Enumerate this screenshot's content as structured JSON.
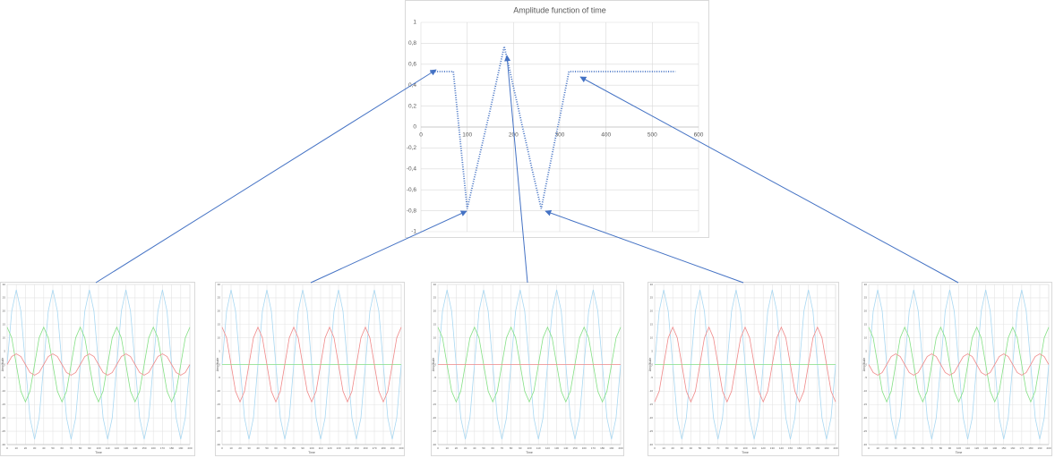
{
  "chart_data": [
    {
      "type": "line",
      "title": "Amplitude function of time",
      "line_style": "dotted",
      "color": "#4472c4",
      "xaxis_position": "zero",
      "grid": true,
      "x": [
        20,
        30,
        40,
        50,
        60,
        70,
        80,
        90,
        100,
        110,
        120,
        130,
        140,
        150,
        160,
        170,
        180,
        190,
        200,
        210,
        220,
        230,
        240,
        250,
        260,
        270,
        280,
        290,
        300,
        310,
        320,
        330,
        340,
        350,
        360,
        370,
        380,
        390,
        400,
        410,
        420,
        430,
        440,
        450,
        460,
        470,
        480,
        490,
        500,
        510,
        520,
        530,
        540,
        550
      ],
      "values": [
        0.53,
        0.53,
        0.53,
        0.53,
        0.53,
        0.53,
        0.09,
        -0.35,
        -0.78,
        -0.59,
        -0.4,
        -0.21,
        -0.02,
        0.17,
        0.37,
        0.57,
        0.77,
        0.58,
        0.38,
        0.19,
        -0.01,
        -0.2,
        -0.4,
        -0.59,
        -0.78,
        -0.56,
        -0.34,
        -0.12,
        0.09,
        0.31,
        0.53,
        0.53,
        0.53,
        0.53,
        0.53,
        0.53,
        0.53,
        0.53,
        0.53,
        0.53,
        0.53,
        0.53,
        0.53,
        0.53,
        0.53,
        0.53,
        0.53,
        0.53,
        0.53,
        0.53,
        0.53,
        0.53,
        0.53,
        0.53
      ],
      "xlim": [
        0,
        600
      ],
      "xticks": [
        0,
        100,
        200,
        300,
        400,
        500,
        600
      ],
      "ylim": [
        -1,
        1
      ],
      "yticks": [
        -1,
        {
          "value": -0.8,
          "label": "-0,8"
        },
        {
          "value": -0.6,
          "label": "-0,6"
        },
        {
          "value": -0.4,
          "label": "-0,4"
        },
        {
          "value": -0.2,
          "label": "-0,2"
        },
        0,
        {
          "value": 0.2,
          "label": "0,2"
        },
        {
          "value": 0.4,
          "label": "0,4"
        },
        {
          "value": 0.6,
          "label": "0,6"
        },
        {
          "value": 0.8,
          "label": "0,8"
        },
        1
      ]
    },
    {
      "type": "line",
      "xlabel": "Time",
      "ylabel": "Amplitude",
      "xaxis_position": "bottom",
      "grid": true,
      "x": [
        0,
        5,
        10,
        15,
        20,
        25,
        30,
        35,
        40,
        45,
        50,
        55,
        60,
        65,
        70,
        75,
        80,
        85,
        90,
        95,
        100,
        105,
        110,
        115,
        120,
        125,
        130,
        135,
        140,
        145,
        150,
        155,
        160,
        165,
        170,
        175,
        180,
        185,
        190,
        195,
        200
      ],
      "series": [
        {
          "color": "#a9d8f2",
          "values": [
            0,
            20,
            28,
            20,
            0,
            -20,
            -28,
            -20,
            0,
            20,
            28,
            20,
            0,
            -20,
            -28,
            -20,
            0,
            20,
            28,
            20,
            0,
            -20,
            -28,
            -20,
            0,
            20,
            28,
            20,
            0,
            -20,
            -28,
            -20,
            0,
            20,
            28,
            20,
            0,
            -20,
            -28,
            -20,
            0
          ]
        },
        {
          "color": "#86e086",
          "values": [
            14,
            10,
            0,
            -10,
            -14,
            -10,
            0,
            10,
            14,
            10,
            0,
            -10,
            -14,
            -10,
            0,
            10,
            14,
            10,
            0,
            -10,
            -14,
            -10,
            0,
            10,
            14,
            10,
            0,
            -10,
            -14,
            -10,
            0,
            10,
            14,
            10,
            0,
            -10,
            -14,
            -10,
            0,
            10,
            14
          ]
        },
        {
          "color": "#f08a8a",
          "values": [
            0,
            3,
            4,
            3,
            0,
            -3,
            -4,
            -3,
            0,
            3,
            4,
            3,
            0,
            -3,
            -4,
            -3,
            0,
            3,
            4,
            3,
            0,
            -3,
            -4,
            -3,
            0,
            3,
            4,
            3,
            0,
            -3,
            -4,
            -3,
            0,
            3,
            4,
            3,
            0,
            -3,
            -4,
            -3,
            0
          ]
        }
      ],
      "xlim": [
        0,
        200
      ],
      "xticks": [
        0,
        10,
        20,
        30,
        40,
        50,
        60,
        70,
        80,
        90,
        100,
        110,
        120,
        130,
        140,
        150,
        160,
        170,
        180,
        190,
        200
      ],
      "ylim": [
        -30,
        30
      ],
      "yticks": [
        -30,
        -25,
        -20,
        -15,
        -10,
        -5,
        0,
        5,
        10,
        15,
        20,
        25,
        30
      ]
    },
    {
      "type": "line",
      "xlabel": "Time",
      "ylabel": "Amplitude",
      "xaxis_position": "bottom",
      "grid": true,
      "x": [
        0,
        5,
        10,
        15,
        20,
        25,
        30,
        35,
        40,
        45,
        50,
        55,
        60,
        65,
        70,
        75,
        80,
        85,
        90,
        95,
        100,
        105,
        110,
        115,
        120,
        125,
        130,
        135,
        140,
        145,
        150,
        155,
        160,
        165,
        170,
        175,
        180,
        185,
        190,
        195,
        200
      ],
      "series": [
        {
          "color": "#a9d8f2",
          "values": [
            0,
            20,
            28,
            20,
            0,
            -20,
            -28,
            -20,
            0,
            20,
            28,
            20,
            0,
            -20,
            -28,
            -20,
            0,
            20,
            28,
            20,
            0,
            -20,
            -28,
            -20,
            0,
            20,
            28,
            20,
            0,
            -20,
            -28,
            -20,
            0,
            20,
            28,
            20,
            0,
            -20,
            -28,
            -20,
            0
          ]
        },
        {
          "color": "#86e086",
          "values": [
            0,
            0,
            0,
            0,
            0,
            0,
            0,
            0,
            0,
            0,
            0,
            0,
            0,
            0,
            0,
            0,
            0,
            0,
            0,
            0,
            0,
            0,
            0,
            0,
            0,
            0,
            0,
            0,
            0,
            0,
            0,
            0,
            0,
            0,
            0,
            0,
            0,
            0,
            0,
            0,
            0
          ]
        },
        {
          "color": "#f08a8a",
          "values": [
            14,
            10,
            0,
            -10,
            -14,
            -10,
            0,
            10,
            14,
            10,
            0,
            -10,
            -14,
            -10,
            0,
            10,
            14,
            10,
            0,
            -10,
            -14,
            -10,
            0,
            10,
            14,
            10,
            0,
            -10,
            -14,
            -10,
            0,
            10,
            14,
            10,
            0,
            -10,
            -14,
            -10,
            0,
            10,
            14
          ]
        }
      ],
      "xlim": [
        0,
        200
      ],
      "xticks": [
        0,
        10,
        20,
        30,
        40,
        50,
        60,
        70,
        80,
        90,
        100,
        110,
        120,
        130,
        140,
        150,
        160,
        170,
        180,
        190,
        200
      ],
      "ylim": [
        -30,
        30
      ],
      "yticks": [
        -30,
        -25,
        -20,
        -15,
        -10,
        -5,
        0,
        5,
        10,
        15,
        20,
        25,
        30
      ]
    },
    {
      "type": "line",
      "xlabel": "Time",
      "ylabel": "Amplitude",
      "xaxis_position": "bottom",
      "grid": true,
      "x": [
        0,
        5,
        10,
        15,
        20,
        25,
        30,
        35,
        40,
        45,
        50,
        55,
        60,
        65,
        70,
        75,
        80,
        85,
        90,
        95,
        100,
        105,
        110,
        115,
        120,
        125,
        130,
        135,
        140,
        145,
        150,
        155,
        160,
        165,
        170,
        175,
        180,
        185,
        190,
        195,
        200
      ],
      "series": [
        {
          "color": "#a9d8f2",
          "values": [
            0,
            20,
            28,
            20,
            0,
            -20,
            -28,
            -20,
            0,
            20,
            28,
            20,
            0,
            -20,
            -28,
            -20,
            0,
            20,
            28,
            20,
            0,
            -20,
            -28,
            -20,
            0,
            20,
            28,
            20,
            0,
            -20,
            -28,
            -20,
            0,
            20,
            28,
            20,
            0,
            -20,
            -28,
            -20,
            0
          ]
        },
        {
          "color": "#86e086",
          "values": [
            14,
            10,
            0,
            -10,
            -14,
            -10,
            0,
            10,
            14,
            10,
            0,
            -10,
            -14,
            -10,
            0,
            10,
            14,
            10,
            0,
            -10,
            -14,
            -10,
            0,
            10,
            14,
            10,
            0,
            -10,
            -14,
            -10,
            0,
            10,
            14,
            10,
            0,
            -10,
            -14,
            -10,
            0,
            10,
            14
          ]
        },
        {
          "color": "#f08a8a",
          "values": [
            0,
            0,
            0,
            0,
            0,
            0,
            0,
            0,
            0,
            0,
            0,
            0,
            0,
            0,
            0,
            0,
            0,
            0,
            0,
            0,
            0,
            0,
            0,
            0,
            0,
            0,
            0,
            0,
            0,
            0,
            0,
            0,
            0,
            0,
            0,
            0,
            0,
            0,
            0,
            0,
            0
          ]
        }
      ],
      "xlim": [
        0,
        200
      ],
      "xticks": [
        0,
        10,
        20,
        30,
        40,
        50,
        60,
        70,
        80,
        90,
        100,
        110,
        120,
        130,
        140,
        150,
        160,
        170,
        180,
        190,
        200
      ],
      "ylim": [
        -30,
        30
      ],
      "yticks": [
        -30,
        -25,
        -20,
        -15,
        -10,
        -5,
        0,
        5,
        10,
        15,
        20,
        25,
        30
      ]
    },
    {
      "type": "line",
      "xlabel": "Time",
      "ylabel": "Amplitude",
      "xaxis_position": "bottom",
      "grid": true,
      "x": [
        0,
        5,
        10,
        15,
        20,
        25,
        30,
        35,
        40,
        45,
        50,
        55,
        60,
        65,
        70,
        75,
        80,
        85,
        90,
        95,
        100,
        105,
        110,
        115,
        120,
        125,
        130,
        135,
        140,
        145,
        150,
        155,
        160,
        165,
        170,
        175,
        180,
        185,
        190,
        195,
        200
      ],
      "series": [
        {
          "color": "#a9d8f2",
          "values": [
            0,
            20,
            28,
            20,
            0,
            -20,
            -28,
            -20,
            0,
            20,
            28,
            20,
            0,
            -20,
            -28,
            -20,
            0,
            20,
            28,
            20,
            0,
            -20,
            -28,
            -20,
            0,
            20,
            28,
            20,
            0,
            -20,
            -28,
            -20,
            0,
            20,
            28,
            20,
            0,
            -20,
            -28,
            -20,
            0
          ]
        },
        {
          "color": "#86e086",
          "values": [
            0,
            0,
            0,
            0,
            0,
            0,
            0,
            0,
            0,
            0,
            0,
            0,
            0,
            0,
            0,
            0,
            0,
            0,
            0,
            0,
            0,
            0,
            0,
            0,
            0,
            0,
            0,
            0,
            0,
            0,
            0,
            0,
            0,
            0,
            0,
            0,
            0,
            0,
            0,
            0,
            0
          ]
        },
        {
          "color": "#f08a8a",
          "values": [
            -14,
            -10,
            0,
            10,
            14,
            10,
            0,
            -10,
            -14,
            -10,
            0,
            10,
            14,
            10,
            0,
            -10,
            -14,
            -10,
            0,
            10,
            14,
            10,
            0,
            -10,
            -14,
            -10,
            0,
            10,
            14,
            10,
            0,
            -10,
            -14,
            -10,
            0,
            10,
            14,
            10,
            0,
            -10,
            -14
          ]
        }
      ],
      "xlim": [
        0,
        200
      ],
      "xticks": [
        0,
        10,
        20,
        30,
        40,
        50,
        60,
        70,
        80,
        90,
        100,
        110,
        120,
        130,
        140,
        150,
        160,
        170,
        180,
        190,
        200
      ],
      "ylim": [
        -30,
        30
      ],
      "yticks": [
        -30,
        -25,
        -20,
        -15,
        -10,
        -5,
        0,
        5,
        10,
        15,
        20,
        25,
        30
      ]
    },
    {
      "type": "line",
      "xlabel": "Time",
      "ylabel": "Amplitude",
      "xaxis_position": "bottom",
      "grid": true,
      "x": [
        0,
        5,
        10,
        15,
        20,
        25,
        30,
        35,
        40,
        45,
        50,
        55,
        60,
        65,
        70,
        75,
        80,
        85,
        90,
        95,
        100,
        105,
        110,
        115,
        120,
        125,
        130,
        135,
        140,
        145,
        150,
        155,
        160,
        165,
        170,
        175,
        180,
        185,
        190,
        195,
        200
      ],
      "series": [
        {
          "color": "#a9d8f2",
          "values": [
            0,
            20,
            28,
            20,
            0,
            -20,
            -28,
            -20,
            0,
            20,
            28,
            20,
            0,
            -20,
            -28,
            -20,
            0,
            20,
            28,
            20,
            0,
            -20,
            -28,
            -20,
            0,
            20,
            28,
            20,
            0,
            -20,
            -28,
            -20,
            0,
            20,
            28,
            20,
            0,
            -20,
            -28,
            -20,
            0
          ]
        },
        {
          "color": "#86e086",
          "values": [
            14,
            10,
            0,
            -10,
            -14,
            -10,
            0,
            10,
            14,
            10,
            0,
            -10,
            -14,
            -10,
            0,
            10,
            14,
            10,
            0,
            -10,
            -14,
            -10,
            0,
            10,
            14,
            10,
            0,
            -10,
            -14,
            -10,
            0,
            10,
            14,
            10,
            0,
            -10,
            -14,
            -10,
            0,
            10,
            14
          ]
        },
        {
          "color": "#f08a8a",
          "values": [
            0,
            -3,
            -4,
            -3,
            0,
            3,
            4,
            3,
            0,
            -3,
            -4,
            -3,
            0,
            3,
            4,
            3,
            0,
            -3,
            -4,
            -3,
            0,
            3,
            4,
            3,
            0,
            -3,
            -4,
            -3,
            0,
            3,
            4,
            3,
            0,
            -3,
            -4,
            -3,
            0,
            3,
            4,
            3,
            0
          ]
        }
      ],
      "xlim": [
        0,
        200
      ],
      "xticks": [
        0,
        10,
        20,
        30,
        40,
        50,
        60,
        70,
        80,
        90,
        100,
        110,
        120,
        130,
        140,
        150,
        160,
        170,
        180,
        190,
        200
      ],
      "ylim": [
        -30,
        30
      ],
      "yticks": [
        -30,
        -25,
        -20,
        -15,
        -10,
        -5,
        0,
        5,
        10,
        15,
        20,
        25,
        30
      ]
    }
  ]
}
